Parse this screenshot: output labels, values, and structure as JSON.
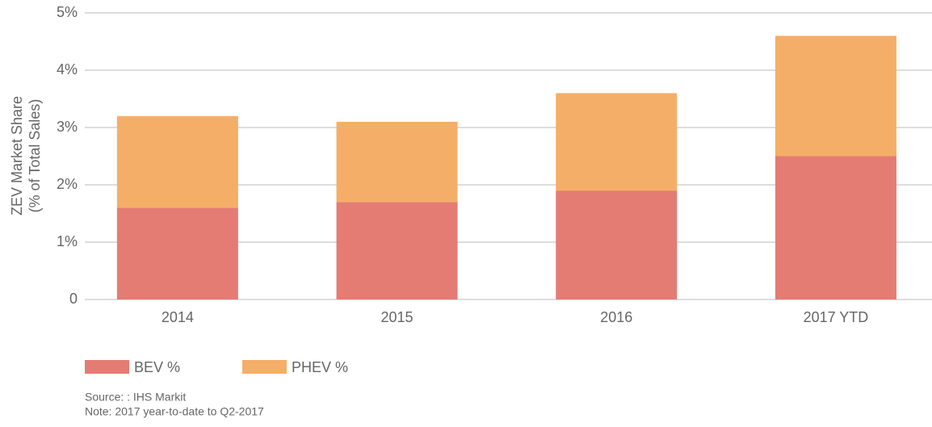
{
  "chart_data": {
    "type": "stacked_bar",
    "y_label": [
      "ZEV Market Share",
      "(% of Total Sales)"
    ],
    "categories": [
      "2014",
      "2015",
      "2016",
      "2017 YTD"
    ],
    "series": [
      {
        "name": "BEV %",
        "color": "#e47c74",
        "values": [
          1.6,
          1.7,
          1.9,
          2.5
        ]
      },
      {
        "name": "PHEV %",
        "color": "#f5ae67",
        "values": [
          1.6,
          1.4,
          1.7,
          2.1
        ]
      }
    ],
    "ylim": [
      0,
      5
    ],
    "yticks": [
      0,
      {
        "value": 1,
        "label": "1%"
      },
      {
        "value": 2,
        "label": "2%"
      },
      {
        "value": 3,
        "label": "3%"
      },
      {
        "value": 4,
        "label": "4%"
      },
      {
        "value": 5,
        "label": "5%"
      }
    ],
    "grid": true,
    "notes": [
      "Source: : IHS Markit",
      "Note: 2017 year-to-date to Q2-2017"
    ]
  }
}
